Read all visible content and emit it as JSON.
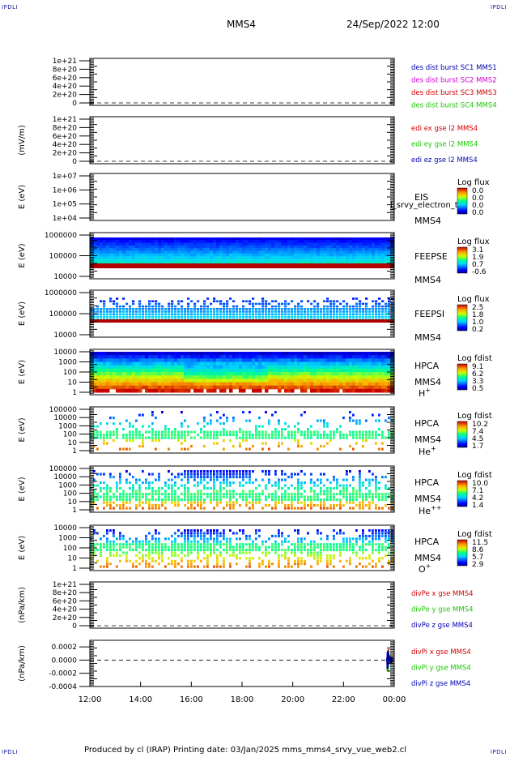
{
  "corner_labels": {
    "tl": "IPDLI",
    "tr": "IPDLI",
    "bl": "IPDLI",
    "br": "IPDLI"
  },
  "header": {
    "spacecraft": "MMS4",
    "datetime": "24/Sep/2022 12:00"
  },
  "footer": {
    "text": "Produced by cl (IRAP)   Printing date: 03/Jan/2025   mms_mms4_srvy_vue_web2.cl"
  },
  "colors": {
    "red": "#d40000",
    "green": "#18c800",
    "blue": "#0000b4",
    "magenta": "#d400d4",
    "line": "#000000"
  },
  "chart_data": [
    {
      "type": "line",
      "id": "des_dist",
      "ylim": [
        0,
        1e+21
      ],
      "tick_labels": [
        "1e+21",
        "8e+20",
        "6e+20",
        "4e+20",
        "2e+20",
        "0"
      ],
      "series": [
        {
          "name": "des dist burst SC1 MMS1",
          "color": "#0000b4"
        },
        {
          "name": "des dist burst SC2 MMS2",
          "color": "#d400d4"
        },
        {
          "name": "des dist burst SC3 MMS3",
          "color": "#d40000"
        },
        {
          "name": "des dist burst SC4 MMS4",
          "color": "#18c800"
        }
      ],
      "zero_line": true
    },
    {
      "type": "line",
      "id": "edi",
      "ylabel": "(mV/m)",
      "ylim": [
        0,
        1e+21
      ],
      "tick_labels": [
        "1e+21",
        "8e+20",
        "6e+20",
        "4e+20",
        "2e+20",
        "0"
      ],
      "series": [
        {
          "name": "edi ex gse l2 MMS4",
          "color": "#d40000"
        },
        {
          "name": "edi ey gse l2 MMS4",
          "color": "#18c800"
        },
        {
          "name": "edi ez gse l2 MMS4",
          "color": "#0000b4"
        }
      ],
      "zero_line": true
    },
    {
      "type": "heatmap",
      "id": "eis",
      "ylabel": "E (eV)",
      "scale": "log",
      "ylim": [
        10000.0,
        10000000.0
      ],
      "tick_labels": [
        "1e+07",
        "1e+06",
        "1e+05",
        "1e+04"
      ],
      "instrument": "EIS",
      "overlap_text": "l_srvy_electron_t",
      "probe": "MMS4",
      "cbar_title": "Log flux",
      "cbar_ticks": [
        "0.0",
        "0.0",
        "0.0",
        "0.0"
      ]
    },
    {
      "type": "heatmap",
      "id": "feepse",
      "ylabel": "E (eV)",
      "scale": "log",
      "ylim": [
        10000,
        1000000
      ],
      "tick_labels": [
        "1000000",
        "100000",
        "10000"
      ],
      "instrument": "FEEPSE",
      "probe": "MMS4",
      "cbar_title": "Log flux",
      "cbar_ticks": [
        "3.1",
        "1.9",
        "0.7",
        "-0.6"
      ]
    },
    {
      "type": "heatmap",
      "id": "feepsi",
      "ylabel": "E (eV)",
      "scale": "log",
      "ylim": [
        10000,
        1000000
      ],
      "tick_labels": [
        "1000000",
        "100000",
        "10000"
      ],
      "instrument": "FEEPSI",
      "probe": "MMS4",
      "cbar_title": "Log flux",
      "cbar_ticks": [
        "2.5",
        "1.8",
        "1.0",
        "0.2"
      ]
    },
    {
      "type": "heatmap",
      "id": "hpca_h",
      "ylabel": "E (eV)",
      "scale": "log",
      "ylim": [
        1,
        10000
      ],
      "tick_labels": [
        "10000",
        "1000",
        "100",
        "10",
        "1"
      ],
      "instrument": "HPCA",
      "probe": "MMS4",
      "species": "H",
      "charge": "+",
      "cbar_title": "Log fdist",
      "cbar_ticks": [
        "9.1",
        "6.2",
        "3.3",
        "0.5"
      ]
    },
    {
      "type": "heatmap",
      "id": "hpca_he",
      "ylabel": "E (eV)",
      "scale": "log",
      "ylim": [
        1,
        100000
      ],
      "tick_labels": [
        "100000",
        "10000",
        "1000",
        "100",
        "10",
        "1"
      ],
      "instrument": "HPCA",
      "probe": "MMS4",
      "species": "He",
      "charge": "+",
      "cbar_title": "Log fdist",
      "cbar_ticks": [
        "10.2",
        "7.4",
        "4.5",
        "1.7"
      ]
    },
    {
      "type": "heatmap",
      "id": "hpca_hepp",
      "ylabel": "E (eV)",
      "scale": "log",
      "ylim": [
        1,
        100000
      ],
      "tick_labels": [
        "100000",
        "10000",
        "1000",
        "100",
        "10",
        "1"
      ],
      "instrument": "HPCA",
      "probe": "MMS4",
      "species": "He",
      "charge": "++",
      "cbar_title": "Log fdist",
      "cbar_ticks": [
        "10.0",
        "7.1",
        "4.2",
        "1.4"
      ]
    },
    {
      "type": "heatmap",
      "id": "hpca_o",
      "ylabel": "E (eV)",
      "scale": "log",
      "ylim": [
        1,
        10000
      ],
      "tick_labels": [
        "10000",
        "1000",
        "100",
        "10",
        "1"
      ],
      "instrument": "HPCA",
      "probe": "MMS4",
      "species": "O",
      "charge": "+",
      "cbar_title": "Log fdist",
      "cbar_ticks": [
        "11.5",
        "8.6",
        "5.7",
        "2.9"
      ]
    },
    {
      "type": "line",
      "id": "divpe",
      "ylabel": "(nPa/km)",
      "ylim": [
        0,
        1e+21
      ],
      "tick_labels": [
        "1e+21",
        "8e+20",
        "6e+20",
        "4e+20",
        "2e+20",
        "0"
      ],
      "series": [
        {
          "name": "divPe x gse MMS4",
          "color": "#d40000"
        },
        {
          "name": "divPe y gse MMS4",
          "color": "#18c800"
        },
        {
          "name": "divPe z gse MMS4",
          "color": "#0000b4"
        }
      ],
      "zero_line": true
    },
    {
      "type": "line",
      "id": "divpi",
      "ylabel": "(nPa/km)",
      "ylim": [
        -0.0004,
        0.0003
      ],
      "tick_labels": [
        "0.0002",
        "0.0000",
        "-0.0002",
        "-0.0004"
      ],
      "tick_values": [
        0.0002,
        0.0,
        -0.0002,
        -0.0004
      ],
      "series": [
        {
          "name": "divPi x gse MMS4",
          "color": "#d40000"
        },
        {
          "name": "divPi y gse MMS4",
          "color": "#18c800"
        },
        {
          "name": "divPi z gse MMS4",
          "color": "#0000b4"
        }
      ],
      "data_start_hour": 23.7,
      "zero_line": true
    }
  ],
  "time_axis": {
    "labels": [
      "12:00",
      "14:00",
      "16:00",
      "18:00",
      "20:00",
      "22:00",
      "00:00"
    ],
    "range_hours": [
      12,
      24
    ]
  }
}
